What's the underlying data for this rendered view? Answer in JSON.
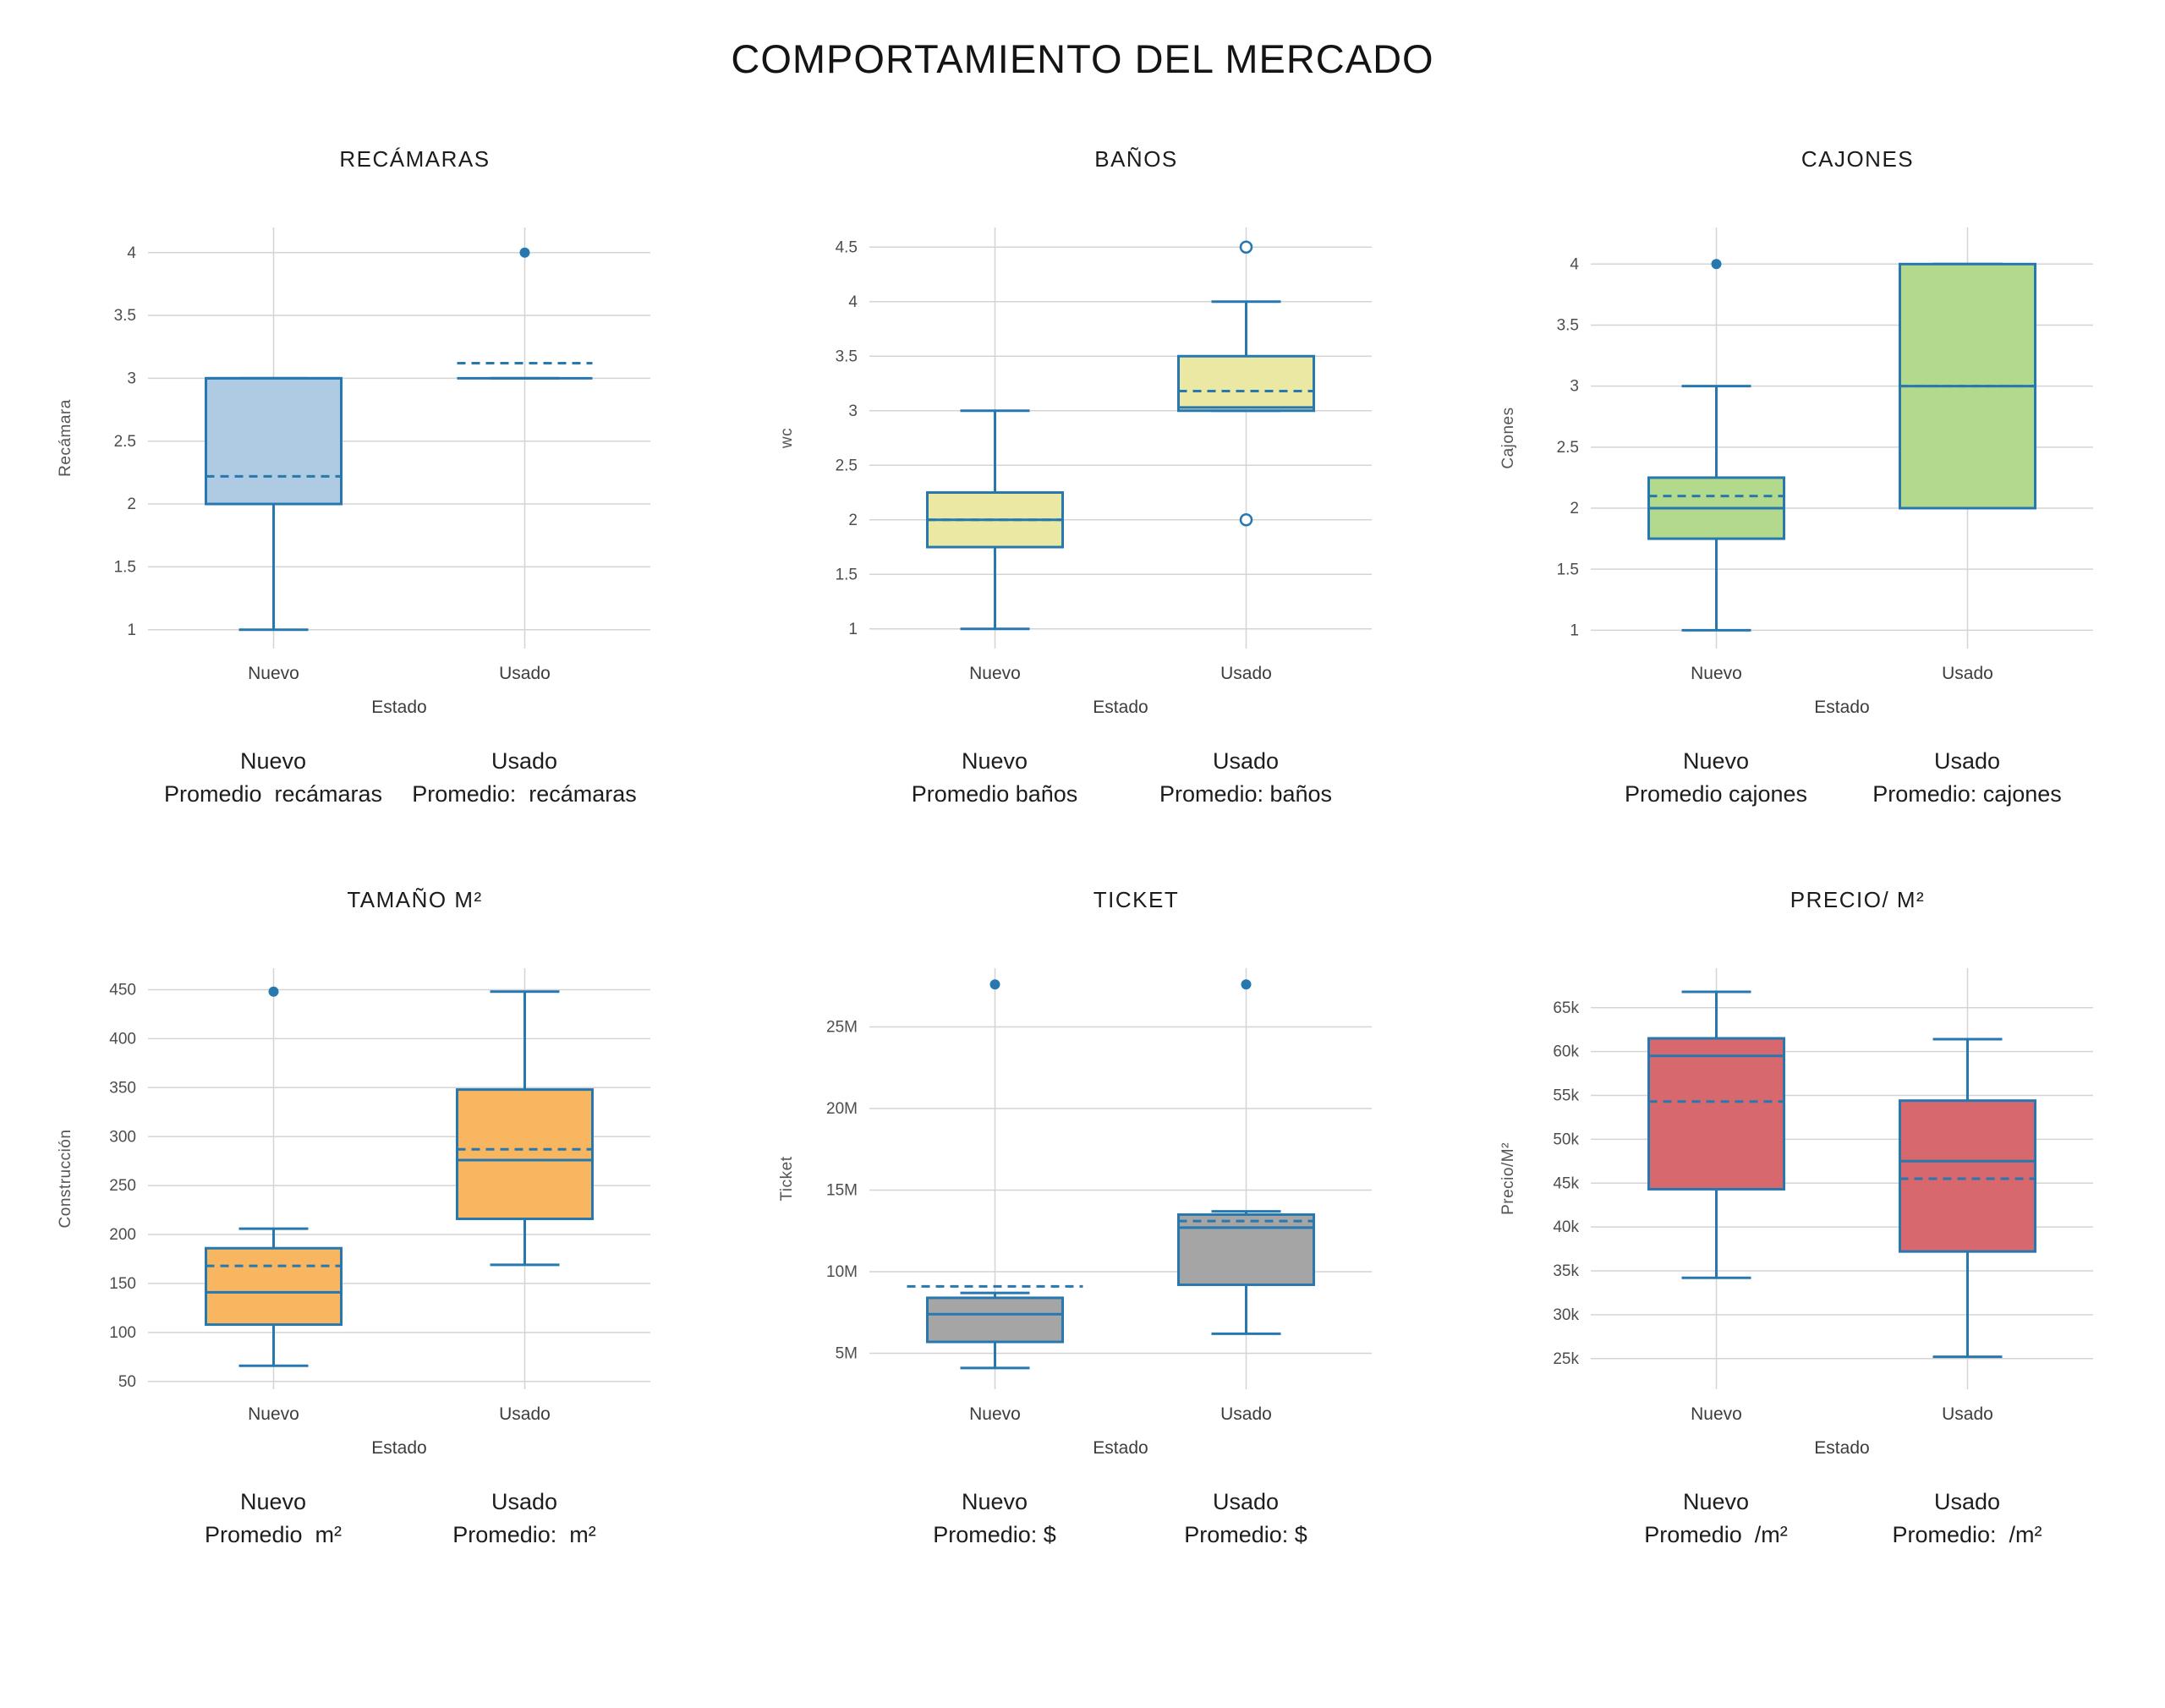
{
  "page_title": "COMPORTAMIENTO DEL MERCADO",
  "colors": {
    "box_stroke": "#2878b0",
    "grid_line": "#d4d4d4",
    "tick_text": "#4d4d4d",
    "axis_title_text": "#555555",
    "category_text": "#3d3d3d",
    "footer_text": "#1d1d1d",
    "title_text": "#141414",
    "open_marker_fill": "#ffffff"
  },
  "chart_data": [
    {
      "key": "recamaras",
      "type": "box",
      "title": "RECÁMARAS",
      "xlabel": "Estado",
      "ylabel": "Recámara",
      "categories": [
        "Nuevo",
        "Usado"
      ],
      "box_fill": "#aecbe3",
      "ylim": [
        0.85,
        4.2
      ],
      "yticks": [
        {
          "value": 1,
          "label": "1"
        },
        {
          "value": 1.5,
          "label": "1.5"
        },
        {
          "value": 2,
          "label": "2"
        },
        {
          "value": 2.5,
          "label": "2.5"
        },
        {
          "value": 3,
          "label": "3"
        },
        {
          "value": 3.5,
          "label": "3.5"
        },
        {
          "value": 4,
          "label": "4"
        }
      ],
      "series": [
        {
          "category": "Nuevo",
          "min": 1,
          "q1": 2,
          "median": 3,
          "q3": 3,
          "max": 3,
          "mean": 2.22,
          "outliers": []
        },
        {
          "category": "Usado",
          "min": 3,
          "q1": 3,
          "median": 3,
          "q3": 3,
          "max": 3,
          "mean": 3.12,
          "outliers": [
            {
              "value": 4,
              "marker": "filled"
            }
          ]
        }
      ],
      "footer": [
        {
          "line1": "Nuevo",
          "line2": "Promedio  recámaras"
        },
        {
          "line1": "Usado",
          "line2": "Promedio:  recámaras"
        }
      ]
    },
    {
      "key": "banos",
      "type": "box",
      "title": "BAÑOS",
      "xlabel": "Estado",
      "ylabel": "wc",
      "categories": [
        "Nuevo",
        "Usado"
      ],
      "box_fill": "#ebe8a4",
      "ylim": [
        0.82,
        4.68
      ],
      "yticks": [
        {
          "value": 1,
          "label": "1"
        },
        {
          "value": 1.5,
          "label": "1.5"
        },
        {
          "value": 2,
          "label": "2"
        },
        {
          "value": 2.5,
          "label": "2.5"
        },
        {
          "value": 3,
          "label": "3"
        },
        {
          "value": 3.5,
          "label": "3.5"
        },
        {
          "value": 4,
          "label": "4"
        },
        {
          "value": 4.5,
          "label": "4.5"
        }
      ],
      "series": [
        {
          "category": "Nuevo",
          "min": 1,
          "q1": 1.75,
          "median": 2,
          "q3": 2.25,
          "max": 3,
          "mean": 2.0,
          "outliers": []
        },
        {
          "category": "Usado",
          "min": 3,
          "q1": 3,
          "median": 3.03,
          "q3": 3.5,
          "max": 4,
          "mean": 3.18,
          "outliers": [
            {
              "value": 4.5,
              "marker": "open"
            },
            {
              "value": 2,
              "marker": "open"
            }
          ]
        }
      ],
      "footer": [
        {
          "line1": "Nuevo",
          "line2": "Promedio baños"
        },
        {
          "line1": "Usado",
          "line2": "Promedio: baños"
        }
      ]
    },
    {
      "key": "cajones",
      "type": "box",
      "title": "CAJONES",
      "xlabel": "Estado",
      "ylabel": "Cajones",
      "categories": [
        "Nuevo",
        "Usado"
      ],
      "box_fill": "#b2d98c",
      "ylim": [
        0.85,
        4.3
      ],
      "yticks": [
        {
          "value": 1,
          "label": "1"
        },
        {
          "value": 1.5,
          "label": "1.5"
        },
        {
          "value": 2,
          "label": "2"
        },
        {
          "value": 2.5,
          "label": "2.5"
        },
        {
          "value": 3,
          "label": "3"
        },
        {
          "value": 3.5,
          "label": "3.5"
        },
        {
          "value": 4,
          "label": "4"
        }
      ],
      "series": [
        {
          "category": "Nuevo",
          "min": 1,
          "q1": 1.75,
          "median": 2,
          "q3": 2.25,
          "max": 3,
          "mean": 2.1,
          "outliers": [
            {
              "value": 4,
              "marker": "filled"
            }
          ]
        },
        {
          "category": "Usado",
          "min": 2,
          "q1": 2,
          "median": 3,
          "q3": 4,
          "max": 4,
          "mean": 3.0,
          "outliers": []
        }
      ],
      "footer": [
        {
          "line1": "Nuevo",
          "line2": "Promedio cajones"
        },
        {
          "line1": "Usado",
          "line2": "Promedio: cajones"
        }
      ]
    },
    {
      "key": "tamano_m2",
      "type": "box",
      "title": "TAMAÑO M²",
      "xlabel": "Estado",
      "ylabel": "Construcción",
      "categories": [
        "Nuevo",
        "Usado"
      ],
      "box_fill": "#f9b660",
      "ylim": [
        42,
        472
      ],
      "yticks": [
        {
          "value": 50,
          "label": "50"
        },
        {
          "value": 100,
          "label": "100"
        },
        {
          "value": 150,
          "label": "150"
        },
        {
          "value": 200,
          "label": "200"
        },
        {
          "value": 250,
          "label": "250"
        },
        {
          "value": 300,
          "label": "300"
        },
        {
          "value": 350,
          "label": "350"
        },
        {
          "value": 400,
          "label": "400"
        },
        {
          "value": 450,
          "label": "450"
        }
      ],
      "series": [
        {
          "category": "Nuevo",
          "min": 66,
          "q1": 108,
          "median": 141,
          "q3": 186,
          "max": 206,
          "mean": 168,
          "outliers": [
            {
              "value": 448,
              "marker": "filled"
            }
          ]
        },
        {
          "category": "Usado",
          "min": 169,
          "q1": 216,
          "median": 276,
          "q3": 348,
          "max": 448,
          "mean": 287,
          "outliers": []
        }
      ],
      "footer": [
        {
          "line1": "Nuevo",
          "line2": "Promedio  m²"
        },
        {
          "line1": "Usado",
          "line2": "Promedio:  m²"
        }
      ]
    },
    {
      "key": "ticket",
      "type": "box",
      "title": "TICKET",
      "xlabel": "Estado",
      "ylabel": "Ticket",
      "categories": [
        "Nuevo",
        "Usado"
      ],
      "box_fill": "#a5a5a5",
      "ylim": [
        2800000,
        28600000
      ],
      "yticks": [
        {
          "value": 5000000,
          "label": "5M"
        },
        {
          "value": 10000000,
          "label": "10M"
        },
        {
          "value": 15000000,
          "label": "15M"
        },
        {
          "value": 20000000,
          "label": "20M"
        },
        {
          "value": 25000000,
          "label": "25M"
        }
      ],
      "series": [
        {
          "category": "Nuevo",
          "min": 4100000,
          "q1": 5700000,
          "median": 7400000,
          "q3": 8400000,
          "max": 8700000,
          "mean": 9100000,
          "mean_wide": true,
          "outliers": [
            {
              "value": 27600000,
              "marker": "filled"
            }
          ]
        },
        {
          "category": "Usado",
          "min": 6200000,
          "q1": 9200000,
          "median": 12700000,
          "q3": 13500000,
          "max": 13700000,
          "mean": 13100000,
          "outliers": [
            {
              "value": 27600000,
              "marker": "filled"
            }
          ]
        }
      ],
      "footer": [
        {
          "line1": "Nuevo",
          "line2": "Promedio: $"
        },
        {
          "line1": "Usado",
          "line2": "Promedio: $"
        }
      ]
    },
    {
      "key": "precio_m2",
      "type": "box",
      "title": "PRECIO/ M²",
      "xlabel": "Estado",
      "ylabel": "Precio/M²",
      "categories": [
        "Nuevo",
        "Usado"
      ],
      "box_fill": "#d7686e",
      "ylim": [
        21500,
        69500
      ],
      "yticks": [
        {
          "value": 25000,
          "label": "25k"
        },
        {
          "value": 30000,
          "label": "30k"
        },
        {
          "value": 35000,
          "label": "35k"
        },
        {
          "value": 40000,
          "label": "40k"
        },
        {
          "value": 45000,
          "label": "45k"
        },
        {
          "value": 50000,
          "label": "50k"
        },
        {
          "value": 55000,
          "label": "55k"
        },
        {
          "value": 60000,
          "label": "60k"
        },
        {
          "value": 65000,
          "label": "65k"
        }
      ],
      "series": [
        {
          "category": "Nuevo",
          "min": 34200,
          "q1": 44300,
          "median": 59500,
          "q3": 61500,
          "max": 66800,
          "mean": 54300,
          "outliers": []
        },
        {
          "category": "Usado",
          "min": 25200,
          "q1": 37200,
          "median": 47500,
          "q3": 54400,
          "max": 61400,
          "mean": 45500,
          "outliers": []
        }
      ],
      "footer": [
        {
          "line1": "Nuevo",
          "line2": "Promedio  /m²"
        },
        {
          "line1": "Usado",
          "line2": "Promedio:  /m²"
        }
      ]
    }
  ]
}
